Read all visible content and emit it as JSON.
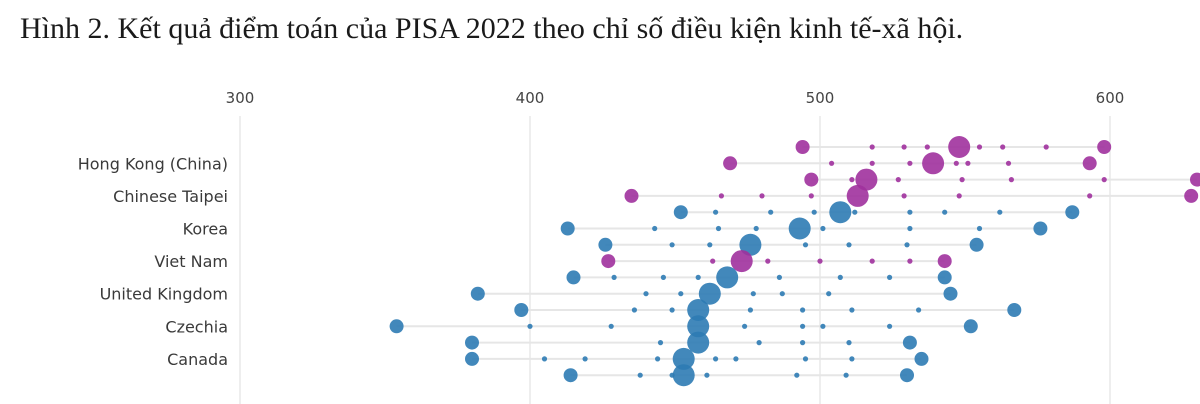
{
  "title": "Hình 2. Kết quả điểm toán của PISA 2022 theo chỉ số điều kiện kinh tế-xã hội.",
  "colors": {
    "purple": "#a0319d",
    "blue": "#2e7bb4",
    "grid": "#dddddd",
    "rowline": "#e6e6e6"
  },
  "chart_data": {
    "type": "scatter",
    "xlim": [
      300,
      630
    ],
    "xticks": [
      300,
      400,
      500,
      600
    ],
    "labeled_countries": [
      "Hong Kong (China)",
      "Chinese Taipei",
      "Korea",
      "Viet Nam",
      "United Kingdom",
      "Czechia",
      "Canada"
    ],
    "rows": [
      {
        "y": 1,
        "color": "purple",
        "min": 494,
        "max": 598,
        "points": [
          [
            494,
            "m"
          ],
          [
            518,
            "s"
          ],
          [
            529,
            "s"
          ],
          [
            537,
            "s"
          ],
          [
            548,
            "l"
          ],
          [
            555,
            "s"
          ],
          [
            563,
            "s"
          ],
          [
            578,
            "s"
          ],
          [
            598,
            "m"
          ]
        ]
      },
      {
        "y": 2,
        "color": "purple",
        "min": 469,
        "max": 593,
        "points": [
          [
            469,
            "m"
          ],
          [
            504,
            "s"
          ],
          [
            518,
            "s"
          ],
          [
            531,
            "s"
          ],
          [
            539,
            "l"
          ],
          [
            547,
            "s"
          ],
          [
            551,
            "s"
          ],
          [
            565,
            "s"
          ],
          [
            593,
            "m"
          ]
        ]
      },
      {
        "y": 3,
        "color": "purple",
        "min": 497,
        "max": 630,
        "points": [
          [
            497,
            "m"
          ],
          [
            511,
            "s"
          ],
          [
            516,
            "l"
          ],
          [
            527,
            "s"
          ],
          [
            549,
            "s"
          ],
          [
            566,
            "s"
          ],
          [
            598,
            "s"
          ],
          [
            630,
            "m"
          ]
        ]
      },
      {
        "y": 4,
        "color": "purple",
        "min": 435,
        "max": 628,
        "points": [
          [
            435,
            "m"
          ],
          [
            466,
            "s"
          ],
          [
            480,
            "s"
          ],
          [
            497,
            "s"
          ],
          [
            513,
            "l"
          ],
          [
            529,
            "s"
          ],
          [
            548,
            "s"
          ],
          [
            593,
            "s"
          ],
          [
            628,
            "m"
          ]
        ]
      },
      {
        "y": 5,
        "color": "blue",
        "min": 452,
        "max": 587,
        "points": [
          [
            452,
            "m"
          ],
          [
            464,
            "s"
          ],
          [
            483,
            "s"
          ],
          [
            498,
            "s"
          ],
          [
            507,
            "l"
          ],
          [
            512,
            "s"
          ],
          [
            531,
            "s"
          ],
          [
            543,
            "s"
          ],
          [
            562,
            "s"
          ],
          [
            587,
            "m"
          ]
        ]
      },
      {
        "y": 6,
        "color": "blue",
        "min": 413,
        "max": 576,
        "points": [
          [
            413,
            "m"
          ],
          [
            443,
            "s"
          ],
          [
            465,
            "s"
          ],
          [
            478,
            "s"
          ],
          [
            493,
            "l"
          ],
          [
            501,
            "s"
          ],
          [
            531,
            "s"
          ],
          [
            555,
            "s"
          ],
          [
            576,
            "m"
          ]
        ]
      },
      {
        "y": 7,
        "color": "blue",
        "min": 426,
        "max": 554,
        "points": [
          [
            426,
            "m"
          ],
          [
            449,
            "s"
          ],
          [
            462,
            "s"
          ],
          [
            476,
            "l"
          ],
          [
            495,
            "s"
          ],
          [
            510,
            "s"
          ],
          [
            530,
            "s"
          ],
          [
            554,
            "m"
          ]
        ]
      },
      {
        "y": 8,
        "color": "purple",
        "min": 427,
        "max": 543,
        "points": [
          [
            427,
            "m"
          ],
          [
            463,
            "s"
          ],
          [
            473,
            "l"
          ],
          [
            482,
            "s"
          ],
          [
            500,
            "s"
          ],
          [
            518,
            "s"
          ],
          [
            531,
            "s"
          ],
          [
            543,
            "m"
          ]
        ]
      },
      {
        "y": 9,
        "color": "blue",
        "min": 415,
        "max": 543,
        "points": [
          [
            415,
            "m"
          ],
          [
            429,
            "s"
          ],
          [
            446,
            "s"
          ],
          [
            458,
            "s"
          ],
          [
            468,
            "l"
          ],
          [
            486,
            "s"
          ],
          [
            507,
            "s"
          ],
          [
            524,
            "s"
          ],
          [
            543,
            "m"
          ]
        ]
      },
      {
        "y": 10,
        "color": "blue",
        "min": 382,
        "max": 545,
        "points": [
          [
            382,
            "m"
          ],
          [
            440,
            "s"
          ],
          [
            452,
            "s"
          ],
          [
            462,
            "l"
          ],
          [
            477,
            "s"
          ],
          [
            487,
            "s"
          ],
          [
            503,
            "s"
          ],
          [
            545,
            "m"
          ]
        ]
      },
      {
        "y": 11,
        "color": "blue",
        "min": 397,
        "max": 567,
        "points": [
          [
            397,
            "m"
          ],
          [
            436,
            "s"
          ],
          [
            449,
            "s"
          ],
          [
            458,
            "l"
          ],
          [
            476,
            "s"
          ],
          [
            494,
            "s"
          ],
          [
            511,
            "s"
          ],
          [
            534,
            "s"
          ],
          [
            567,
            "m"
          ]
        ]
      },
      {
        "y": 12,
        "color": "blue",
        "min": 354,
        "max": 552,
        "points": [
          [
            354,
            "m"
          ],
          [
            400,
            "s"
          ],
          [
            428,
            "s"
          ],
          [
            458,
            "l"
          ],
          [
            474,
            "s"
          ],
          [
            494,
            "s"
          ],
          [
            501,
            "s"
          ],
          [
            524,
            "s"
          ],
          [
            552,
            "m"
          ]
        ]
      },
      {
        "y": 13,
        "color": "blue",
        "min": 380,
        "max": 531,
        "points": [
          [
            380,
            "m"
          ],
          [
            445,
            "s"
          ],
          [
            458,
            "l"
          ],
          [
            479,
            "s"
          ],
          [
            494,
            "s"
          ],
          [
            510,
            "s"
          ],
          [
            531,
            "m"
          ]
        ]
      },
      {
        "y": 14,
        "color": "blue",
        "min": 380,
        "max": 535,
        "points": [
          [
            380,
            "m"
          ],
          [
            405,
            "s"
          ],
          [
            419,
            "s"
          ],
          [
            444,
            "s"
          ],
          [
            453,
            "l"
          ],
          [
            464,
            "s"
          ],
          [
            471,
            "s"
          ],
          [
            495,
            "s"
          ],
          [
            511,
            "s"
          ],
          [
            535,
            "m"
          ]
        ]
      },
      {
        "y": 15,
        "color": "blue",
        "min": 414,
        "max": 530,
        "points": [
          [
            414,
            "m"
          ],
          [
            438,
            "s"
          ],
          [
            449,
            "s"
          ],
          [
            461,
            "s"
          ],
          [
            453,
            "l"
          ],
          [
            492,
            "s"
          ],
          [
            509,
            "s"
          ],
          [
            530,
            "m"
          ]
        ]
      }
    ]
  }
}
